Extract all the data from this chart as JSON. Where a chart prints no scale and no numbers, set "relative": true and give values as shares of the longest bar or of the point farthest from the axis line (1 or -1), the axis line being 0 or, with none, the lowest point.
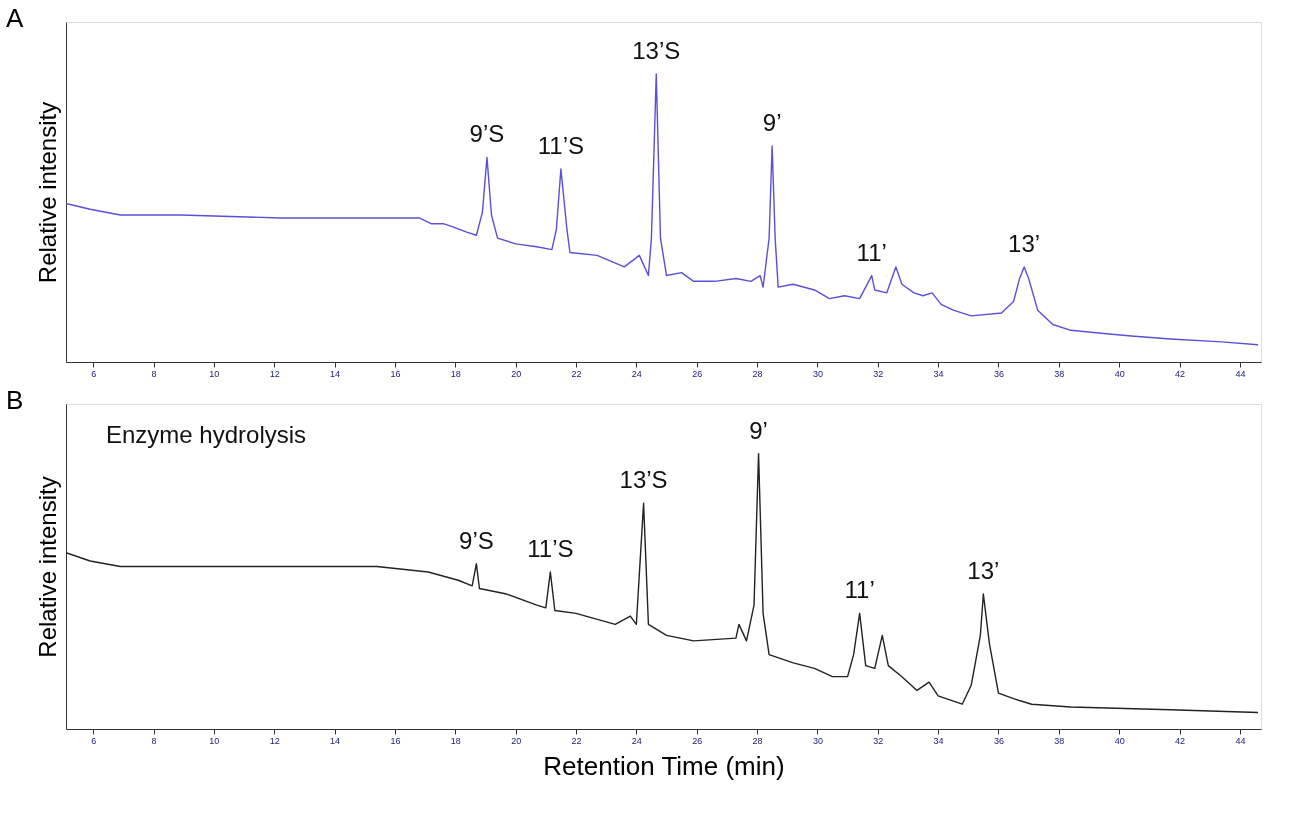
{
  "chart_data": [
    {
      "type": "line",
      "title": "A",
      "ylabel": "Relative intensity",
      "relative": true,
      "grid": false,
      "marker": "none",
      "line_style": "solid",
      "xlim": [
        5.1,
        44.7
      ],
      "xticks": [
        6,
        8,
        10,
        12,
        14,
        16,
        18,
        20,
        22,
        24,
        26,
        28,
        30,
        32,
        34,
        36,
        38,
        40,
        42,
        44
      ],
      "x": [
        5.1,
        5.9,
        6.9,
        8.9,
        12.2,
        15.4,
        16.8,
        17.2,
        17.6,
        17.9,
        18.4,
        18.7,
        18.9,
        19.05,
        19.2,
        19.4,
        20.0,
        20.7,
        21.2,
        21.35,
        21.5,
        21.7,
        21.8,
        22.7,
        23.6,
        24.1,
        24.4,
        24.5,
        24.66,
        24.8,
        25.0,
        25.5,
        25.9,
        26.6,
        27.3,
        27.8,
        28.1,
        28.2,
        28.4,
        28.5,
        28.6,
        28.7,
        29.2,
        29.9,
        30.4,
        30.9,
        31.4,
        31.6,
        31.8,
        31.9,
        32.3,
        32.6,
        32.8,
        33.2,
        33.5,
        33.8,
        34.1,
        34.5,
        35.1,
        36.1,
        36.5,
        36.7,
        36.85,
        37.0,
        37.3,
        37.8,
        38.4,
        39.4,
        40.4,
        41.7,
        43.4,
        44.6
      ],
      "series": [
        {
          "color": "#5b4fd8",
          "values": [
            0.55,
            0.53,
            0.51,
            0.51,
            0.5,
            0.5,
            0.5,
            0.48,
            0.48,
            0.47,
            0.45,
            0.44,
            0.52,
            0.71,
            0.51,
            0.43,
            0.41,
            0.4,
            0.39,
            0.46,
            0.67,
            0.46,
            0.38,
            0.37,
            0.33,
            0.37,
            0.3,
            0.43,
            1.0,
            0.43,
            0.3,
            0.31,
            0.28,
            0.28,
            0.29,
            0.28,
            0.3,
            0.26,
            0.43,
            0.75,
            0.43,
            0.26,
            0.27,
            0.25,
            0.22,
            0.23,
            0.22,
            0.26,
            0.3,
            0.25,
            0.24,
            0.33,
            0.27,
            0.24,
            0.23,
            0.24,
            0.2,
            0.18,
            0.16,
            0.17,
            0.21,
            0.29,
            0.33,
            0.29,
            0.18,
            0.13,
            0.11,
            0.1,
            0.09,
            0.08,
            0.07,
            0.06
          ]
        }
      ],
      "annotations": [
        {
          "text": "9’S",
          "x": 19.05,
          "y": 0.71
        },
        {
          "text": "11’S",
          "x": 21.5,
          "y": 0.67
        },
        {
          "text": "13’S",
          "x": 24.66,
          "y": 1.0
        },
        {
          "text": "9’",
          "x": 28.5,
          "y": 0.75
        },
        {
          "text": "11’",
          "x": 31.8,
          "y": 0.3
        },
        {
          "text": "13’",
          "x": 36.85,
          "y": 0.33
        }
      ]
    },
    {
      "type": "line",
      "title": "B",
      "ylabel": "Relative intensity",
      "xlabel": "Retention Time (min)",
      "relative": true,
      "grid": false,
      "marker": "none",
      "line_style": "solid",
      "xlim": [
        5.1,
        44.7
      ],
      "xticks": [
        6,
        8,
        10,
        12,
        14,
        16,
        18,
        20,
        22,
        24,
        26,
        28,
        30,
        32,
        34,
        36,
        38,
        40,
        42,
        44
      ],
      "x": [
        5.1,
        5.9,
        6.9,
        8.9,
        12.2,
        15.4,
        17.1,
        18.1,
        18.56,
        18.7,
        18.8,
        19.7,
        20.7,
        21.0,
        21.15,
        21.3,
        22.0,
        23.3,
        23.8,
        24.0,
        24.24,
        24.4,
        25.0,
        25.9,
        27.3,
        27.4,
        27.65,
        27.9,
        28.05,
        28.2,
        28.4,
        29.2,
        29.9,
        30.5,
        31.0,
        31.2,
        31.4,
        31.6,
        31.9,
        32.15,
        32.35,
        32.8,
        33.3,
        33.7,
        34.0,
        34.8,
        35.1,
        35.4,
        35.5,
        35.7,
        36.0,
        36.5,
        36.8,
        37.1,
        38.4,
        41.7,
        44.6
      ],
      "series": [
        {
          "color": "#222222",
          "values": [
            0.64,
            0.61,
            0.59,
            0.59,
            0.59,
            0.59,
            0.57,
            0.54,
            0.52,
            0.6,
            0.51,
            0.49,
            0.45,
            0.44,
            0.57,
            0.43,
            0.42,
            0.38,
            0.41,
            0.38,
            0.82,
            0.38,
            0.34,
            0.32,
            0.33,
            0.38,
            0.32,
            0.45,
            1.0,
            0.42,
            0.27,
            0.24,
            0.22,
            0.19,
            0.19,
            0.27,
            0.42,
            0.23,
            0.22,
            0.34,
            0.23,
            0.19,
            0.14,
            0.17,
            0.12,
            0.09,
            0.16,
            0.34,
            0.49,
            0.31,
            0.13,
            0.11,
            0.1,
            0.09,
            0.08,
            0.07,
            0.06
          ]
        }
      ],
      "annotations": [
        "Enzyme hydrolysis",
        {
          "text": "9’S",
          "x": 18.7,
          "y": 0.6
        },
        {
          "text": "11’S",
          "x": 21.15,
          "y": 0.57
        },
        {
          "text": "13’S",
          "x": 24.24,
          "y": 0.82
        },
        {
          "text": "9’",
          "x": 28.05,
          "y": 1.0
        },
        {
          "text": "11’",
          "x": 31.4,
          "y": 0.42
        },
        {
          "text": "13’",
          "x": 35.5,
          "y": 0.49
        }
      ]
    }
  ]
}
